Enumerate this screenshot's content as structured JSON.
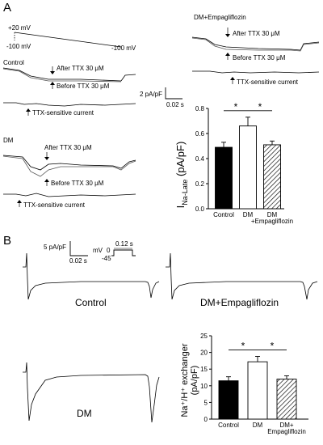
{
  "panel_A": {
    "letter": "A",
    "protocol": {
      "v_hold": "+20 mV",
      "v_start": "-100 mV",
      "v_end": "-100 mV"
    },
    "control": {
      "label": "Control",
      "after": "After TTX 30 μM",
      "before": "Before TTX 30 μM",
      "diff": "TTX-sensitive current"
    },
    "dm": {
      "label": "DM",
      "after": "After TTX 30 μM",
      "before": "Before TTX 30 μM",
      "diff": "TTX-sensitive current"
    },
    "dm_empa": {
      "label": "DM+Empagliflozin",
      "after": "After TTX 30 μM",
      "before": "Before TTX 30 μM",
      "diff": "TTX-sensitive current"
    },
    "scalebar": {
      "y": "2 pA/pF",
      "x": "0.02 s"
    }
  },
  "panel_B": {
    "letter": "B",
    "scalebar": {
      "y": "5 pA/pF",
      "x": "0.02 s"
    },
    "protocol": {
      "unit": "mV",
      "v0": "0",
      "v1": "-45",
      "dur": "0.12 s"
    },
    "labels": {
      "control": "Control",
      "dm_empa": "DM+Empagliflozin",
      "dm": "DM"
    }
  },
  "chart_data": [
    {
      "type": "bar",
      "categories": [
        "Control",
        "DM",
        "DM +Empagliflozin"
      ],
      "values": [
        0.49,
        0.66,
        0.51
      ],
      "errors": [
        0.04,
        0.07,
        0.03
      ],
      "ylabel": "I_Na-Late (pA/pF)",
      "ylabel_main": "I",
      "ylabel_sub": "Na-Late",
      "ylabel_unit": " (pA/pF)",
      "ylim": [
        0,
        0.8
      ],
      "yticks": [
        "0.0",
        "0.2",
        "0.4",
        "0.6",
        "0.8"
      ],
      "significance": [
        "*",
        "*"
      ],
      "fills": [
        "#000000",
        "#ffffff",
        "hatch"
      ]
    },
    {
      "type": "bar",
      "categories": [
        "Control",
        "DM",
        "DM+ Empagliflozin"
      ],
      "values": [
        11.5,
        17.2,
        12.0
      ],
      "errors": [
        1.2,
        1.6,
        1.0
      ],
      "ylabel_line1": "Na⁺/H⁺ exchanger",
      "ylabel_line2": "(pA/pF)",
      "ylim": [
        0,
        25
      ],
      "yticks": [
        "0",
        "5",
        "10",
        "15",
        "20",
        "25"
      ],
      "significance": [
        "*",
        "*"
      ],
      "fills": [
        "#000000",
        "#ffffff",
        "hatch"
      ]
    }
  ]
}
